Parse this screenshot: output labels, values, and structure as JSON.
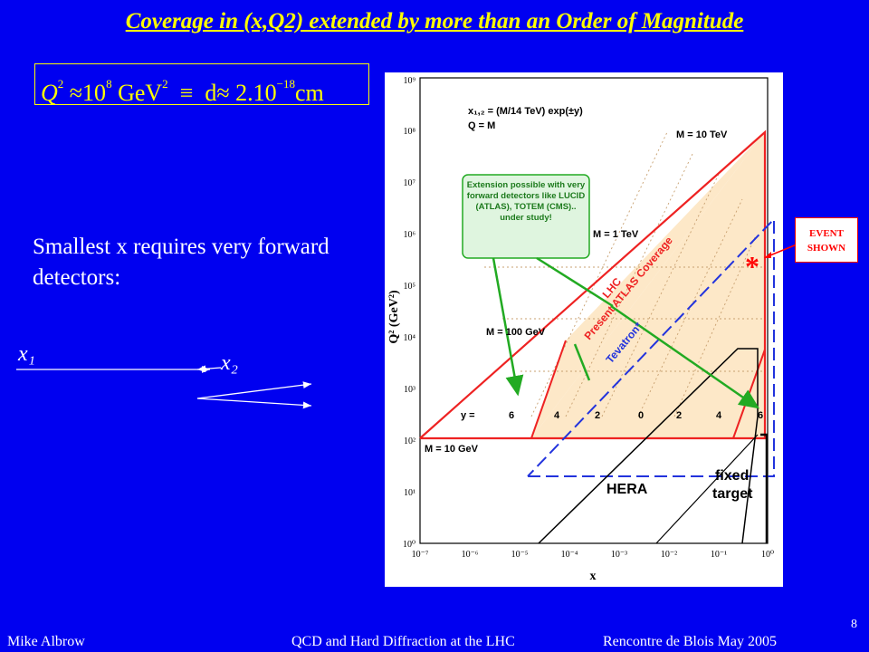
{
  "slide": {
    "title": "Coverage in (x,Q2) extended by more than an Order of Magnitude",
    "formula": {
      "q": "Q",
      "q_exp": "2",
      "approx1": " ≈10",
      "exp1": "8",
      "gev": " GeV",
      "gev_exp": "2",
      "equiv": "  ≡  ",
      "d": "d",
      "approx2": "≈ 2.10",
      "exp2": "−18",
      "cm": "cm"
    },
    "statement": "Smallest x requires very forward detectors:",
    "kinematics": {
      "x1": "x₁",
      "x2": "x₂"
    },
    "callout": {
      "line1": "EVENT",
      "line2": "SHOWN"
    },
    "star": "*",
    "footer": {
      "author": "Mike Albrow",
      "talk": "QCD and Hard Diffraction at the LHC",
      "venue": "Rencontre de Blois May 2005",
      "page": "8"
    }
  },
  "chart_data": {
    "type": "diagram",
    "xlabel": "x",
    "ylabel": "Q² (GeV²)",
    "x_scale": "log",
    "y_scale": "log",
    "xlim": [
      1e-07,
      1
    ],
    "ylim": [
      1,
      1000000000.0
    ],
    "x_ticks": [
      "10⁻⁷",
      "10⁻⁶",
      "10⁻⁵",
      "10⁻⁴",
      "10⁻³",
      "10⁻²",
      "10⁻¹",
      "10⁰"
    ],
    "y_ticks": [
      "10⁰",
      "10¹",
      "10²",
      "10³",
      "10⁴",
      "10⁵",
      "10⁶",
      "10⁷",
      "10⁸",
      "10⁹"
    ],
    "legend_text": [
      "x₁,₂ = (M/14 TeV) exp(±y)",
      "Q = M"
    ],
    "mass_labels": [
      "M = 10 TeV",
      "M = 1 TeV",
      "M = 100 GeV",
      "M = 10 GeV"
    ],
    "rapidity_labels": [
      "y =",
      "6",
      "4",
      "2",
      "0",
      "2",
      "4",
      "6"
    ],
    "region_labels": [
      "LHC",
      "Present ATLAS Coverage",
      "Tevatron*",
      "HERA",
      "fixed",
      "target"
    ],
    "annotation": "Extension possible with very forward detectors like LUCID (ATLAS), TOTEM (CMS).. under study!",
    "lhc_region": [
      [
        1e-07,
        100
      ],
      [
        1.5e-06,
        100
      ],
      [
        1,
        100
      ],
      [
        1,
        100000000.0
      ],
      [
        1e-07,
        100
      ]
    ],
    "atlas_coverage": [
      [
        1e-05,
        100
      ],
      [
        0.3,
        100
      ],
      [
        1,
        100000000.0
      ],
      [
        1e-05,
        100
      ]
    ]
  }
}
